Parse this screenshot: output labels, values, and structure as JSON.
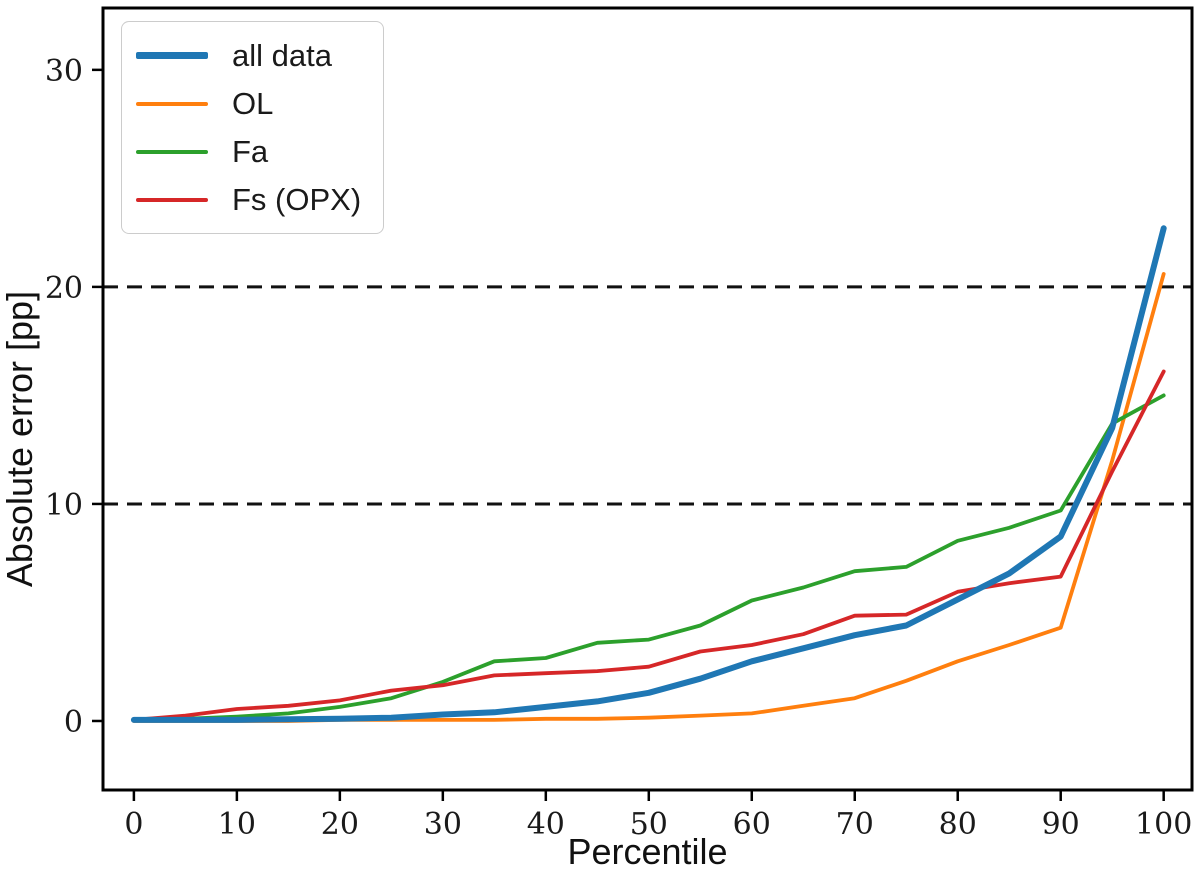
{
  "chart_data": {
    "type": "line",
    "title": "",
    "xlabel": "Percentile",
    "ylabel": "Absolute error [pp]",
    "x": [
      0,
      5,
      10,
      15,
      20,
      25,
      30,
      35,
      40,
      45,
      50,
      55,
      60,
      65,
      70,
      75,
      80,
      85,
      90,
      95,
      100
    ],
    "x_ticks": [
      0,
      10,
      20,
      30,
      40,
      50,
      60,
      70,
      80,
      90,
      100
    ],
    "y_ticks": [
      0,
      10,
      20,
      30
    ],
    "xlim": [
      -3.0,
      102.75
    ],
    "ylim": [
      -3.18,
      32.85
    ],
    "grid": false,
    "hlines": [
      10,
      20
    ],
    "hline_style": "dashed",
    "hline_color": "#111111",
    "legend_position": "upper-left",
    "series": [
      {
        "name": "all data",
        "color": "#1f77b4",
        "width": 6,
        "values": [
          0.05,
          0.05,
          0.05,
          0.08,
          0.1,
          0.15,
          0.3,
          0.4,
          0.65,
          0.9,
          1.3,
          1.95,
          2.75,
          3.35,
          3.95,
          4.4,
          5.6,
          6.8,
          8.5,
          13.5,
          22.7
        ]
      },
      {
        "name": "OL",
        "color": "#ff7f0e",
        "width": 3.8,
        "values": [
          0.0,
          0.0,
          0.0,
          0.0,
          0.05,
          0.05,
          0.05,
          0.05,
          0.1,
          0.1,
          0.15,
          0.25,
          0.35,
          0.7,
          1.05,
          1.85,
          2.75,
          3.5,
          4.3,
          12.0,
          20.6
        ]
      },
      {
        "name": "Fa",
        "color": "#2ca02c",
        "width": 3.8,
        "values": [
          0.05,
          0.1,
          0.2,
          0.35,
          0.65,
          1.05,
          1.8,
          2.75,
          2.9,
          3.6,
          3.75,
          4.4,
          5.55,
          6.15,
          6.9,
          7.1,
          8.3,
          8.9,
          9.7,
          13.7,
          15.0
        ]
      },
      {
        "name": "Fs (OPX)",
        "color": "#d62728",
        "width": 3.8,
        "values": [
          0.05,
          0.25,
          0.55,
          0.7,
          0.95,
          1.4,
          1.65,
          2.1,
          2.2,
          2.3,
          2.5,
          3.2,
          3.5,
          4.0,
          4.85,
          4.9,
          5.95,
          6.35,
          6.65,
          11.5,
          16.1
        ]
      }
    ]
  }
}
